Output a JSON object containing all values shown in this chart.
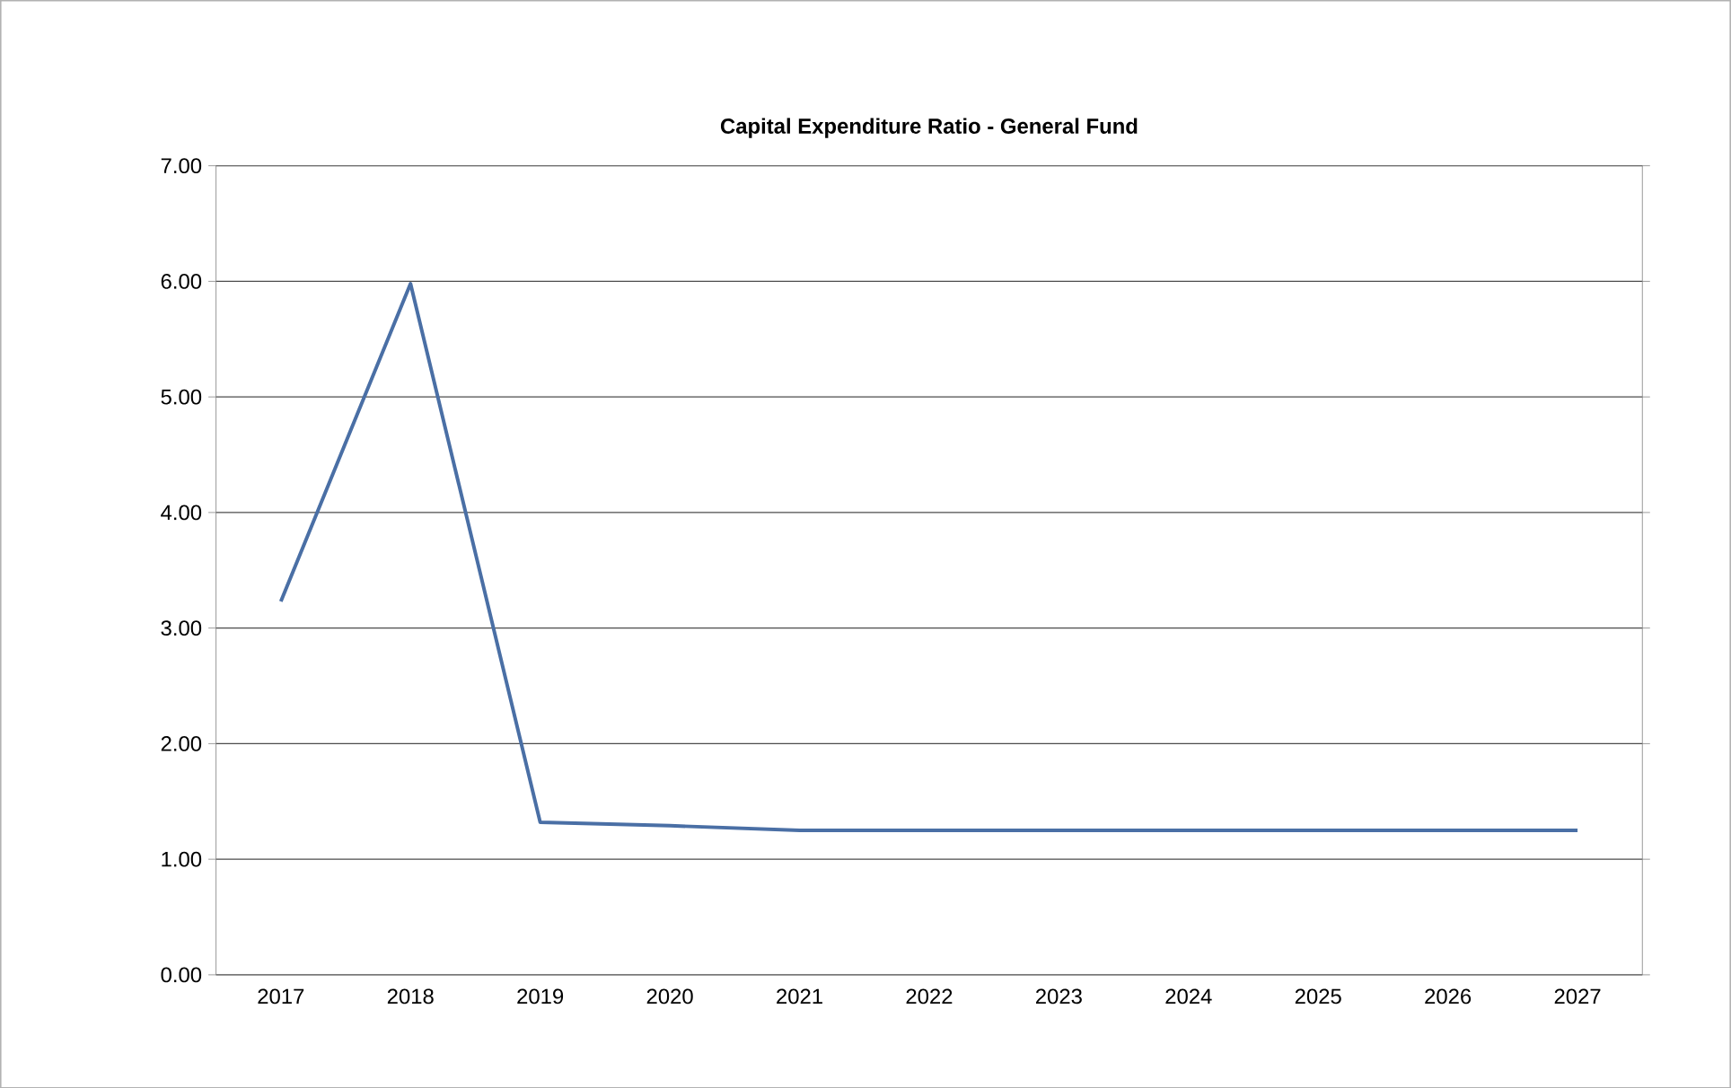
{
  "chart_data": {
    "type": "line",
    "title": "Capital Expenditure Ratio - General Fund",
    "categories": [
      "2017",
      "2018",
      "2019",
      "2020",
      "2021",
      "2022",
      "2023",
      "2024",
      "2025",
      "2026",
      "2027"
    ],
    "series": [
      {
        "color": "#4a6fa5",
        "values": [
          3.23,
          5.98,
          1.32,
          1.29,
          1.25,
          1.25,
          1.25,
          1.25,
          1.25,
          1.25,
          1.25
        ]
      }
    ],
    "ylim": [
      0,
      7
    ],
    "yticks": [
      {
        "value": 0,
        "label": "0.00"
      },
      {
        "value": 1,
        "label": "1.00"
      },
      {
        "value": 2,
        "label": "2.00"
      },
      {
        "value": 3,
        "label": "3.00"
      },
      {
        "value": 4,
        "label": "4.00"
      },
      {
        "value": 5,
        "label": "5.00"
      },
      {
        "value": 6,
        "label": "6.00"
      },
      {
        "value": 7,
        "label": "7.00"
      }
    ],
    "grid": "y",
    "marker": "none",
    "line_style": "solid"
  }
}
